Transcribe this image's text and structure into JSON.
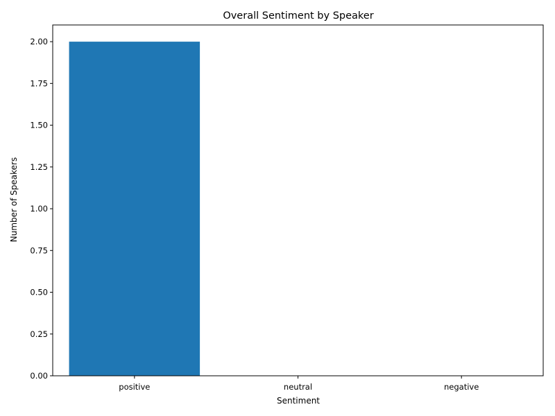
{
  "chart_data": {
    "type": "bar",
    "title": "Overall Sentiment by Speaker",
    "xlabel": "Sentiment",
    "ylabel": "Number of Speakers",
    "categories": [
      "positive",
      "neutral",
      "negative"
    ],
    "values": [
      2,
      0,
      0
    ],
    "ylim": [
      0,
      2.1
    ],
    "yticks": [
      0.0,
      0.25,
      0.5,
      0.75,
      1.0,
      1.25,
      1.5,
      1.75,
      2.0
    ],
    "ytick_labels": [
      "0.00",
      "0.25",
      "0.50",
      "0.75",
      "1.00",
      "1.25",
      "1.50",
      "1.75",
      "2.00"
    ],
    "bar_color": "#1f77b4",
    "grid": false,
    "legend": "none"
  }
}
